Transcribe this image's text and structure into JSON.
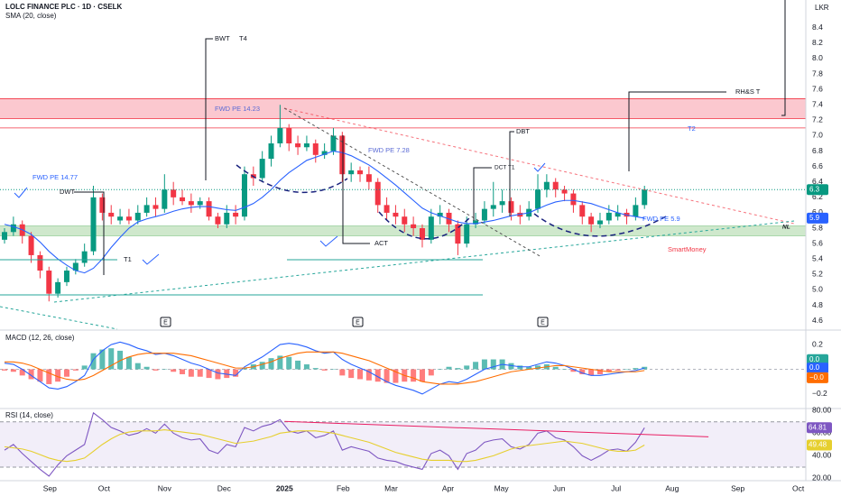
{
  "chart_data": [
    {
      "type": "candlestick",
      "title": "LOLC FINANCE PLC · 1D · CSELK",
      "unit_label": "LKR",
      "xlim": [
        -0.51,
        90.15
      ],
      "ylim": [
        4.49,
        8.76
      ],
      "yticks": [
        4.6,
        4.8,
        {
          "value": 5,
          "label": "5.0"
        },
        5.2,
        5.4,
        5.6,
        5.8,
        {
          "value": 6,
          "label": "6.0"
        },
        6.2,
        6.4,
        6.6,
        6.8,
        {
          "value": 7,
          "label": "7.0"
        },
        7.2,
        7.4,
        7.6,
        7.8,
        {
          "value": 8,
          "label": "8.0"
        },
        8.2,
        8.4
      ],
      "grid": false,
      "up_color": "#089981",
      "down_color": "#f23645",
      "open": [
        5.65,
        5.75,
        5.85,
        5.7,
        5.45,
        5.25,
        4.95,
        5.1,
        5.25,
        5.35,
        5.5,
        6.2,
        6.0,
        5.9,
        5.95,
        5.9,
        6.0,
        6.1,
        6.05,
        6.3,
        6.2,
        6.15,
        6.1,
        6.15,
        5.95,
        5.85,
        6.0,
        5.95,
        6.5,
        6.45,
        6.7,
        6.9,
        7.1,
        6.9,
        6.85,
        6.9,
        6.75,
        6.8,
        7.0,
        6.5,
        6.55,
        6.5,
        6.4,
        6.1,
        6.0,
        5.95,
        5.85,
        5.8,
        5.65,
        5.95,
        6.0,
        5.85,
        5.6,
        5.85,
        5.9,
        6.05,
        6.1,
        6.15,
        6.0,
        5.95,
        6.05,
        6.3,
        6.4,
        6.3,
        6.25,
        6.1,
        5.95,
        5.85,
        5.9,
        5.95,
        6.0,
        5.95,
        6.1
      ],
      "high": [
        5.8,
        5.95,
        5.9,
        5.75,
        5.5,
        5.3,
        5.15,
        5.3,
        5.4,
        5.6,
        6.35,
        6.25,
        6.1,
        6.05,
        6.05,
        6.1,
        6.2,
        6.2,
        6.5,
        6.4,
        6.3,
        6.25,
        6.2,
        6.2,
        6.0,
        6.1,
        6.1,
        6.6,
        6.6,
        6.8,
        7.0,
        7.4,
        7.15,
        7.0,
        7.0,
        6.95,
        6.9,
        7.1,
        7.05,
        6.65,
        6.6,
        6.6,
        6.45,
        6.2,
        6.1,
        6.05,
        5.95,
        5.85,
        6.05,
        6.1,
        6.05,
        5.9,
        5.95,
        6.0,
        6.15,
        6.4,
        6.3,
        6.2,
        6.1,
        6.15,
        6.5,
        6.5,
        6.45,
        6.35,
        6.3,
        6.15,
        6.0,
        6.0,
        6.1,
        6.1,
        6.05,
        6.2,
        6.35
      ],
      "low": [
        5.6,
        5.7,
        5.6,
        5.35,
        5.15,
        4.85,
        4.9,
        5.05,
        5.2,
        5.3,
        5.45,
        5.9,
        5.85,
        5.85,
        5.85,
        5.85,
        5.95,
        5.95,
        6.0,
        6.1,
        6.1,
        6.0,
        6.05,
        5.9,
        5.8,
        5.8,
        5.85,
        5.9,
        6.35,
        6.4,
        6.6,
        6.85,
        6.8,
        6.75,
        6.8,
        6.65,
        6.7,
        6.75,
        6.4,
        6.4,
        6.4,
        6.3,
        6.0,
        5.9,
        5.85,
        5.75,
        5.7,
        5.55,
        5.6,
        5.85,
        5.75,
        5.45,
        5.55,
        5.8,
        5.85,
        5.95,
        6.0,
        5.9,
        5.85,
        5.9,
        6.0,
        6.2,
        6.2,
        6.15,
        6.0,
        5.85,
        5.75,
        5.8,
        5.85,
        5.9,
        5.85,
        5.9,
        6.05
      ],
      "close": [
        5.75,
        5.85,
        5.7,
        5.45,
        5.25,
        4.95,
        5.1,
        5.25,
        5.35,
        5.5,
        6.2,
        6.0,
        5.95,
        5.95,
        5.9,
        6.0,
        6.1,
        6.05,
        6.3,
        6.2,
        6.15,
        6.1,
        6.15,
        5.95,
        5.85,
        6.0,
        5.95,
        6.5,
        6.45,
        6.7,
        6.9,
        7.1,
        6.9,
        6.85,
        6.9,
        6.75,
        6.8,
        7.0,
        6.5,
        6.55,
        6.5,
        6.4,
        6.1,
        6.0,
        5.95,
        5.85,
        5.8,
        5.65,
        5.95,
        6.0,
        5.85,
        5.6,
        5.85,
        5.9,
        6.05,
        6.1,
        6.15,
        6.0,
        5.95,
        6.05,
        6.3,
        6.4,
        6.3,
        6.25,
        6.1,
        5.95,
        5.85,
        5.9,
        6.0,
        6.0,
        5.95,
        6.1,
        6.3
      ],
      "last_value_label": "6.3",
      "last_color": "#089981",
      "series": [
        {
          "name": "SMA (20, close)",
          "color": "#2962ff",
          "values": [
            5.85,
            5.82,
            5.78,
            5.72,
            5.62,
            5.5,
            5.4,
            5.32,
            5.25,
            5.22,
            5.28,
            5.4,
            5.55,
            5.68,
            5.8,
            5.88,
            5.92,
            5.95,
            5.98,
            6.02,
            6.05,
            6.07,
            6.08,
            6.08,
            6.06,
            6.04,
            6.03,
            6.07,
            6.12,
            6.2,
            6.3,
            6.42,
            6.52,
            6.6,
            6.68,
            6.72,
            6.76,
            6.8,
            6.78,
            6.74,
            6.68,
            6.62,
            6.54,
            6.45,
            6.36,
            6.26,
            6.16,
            6.06,
            6.0,
            5.96,
            5.92,
            5.88,
            5.86,
            5.86,
            5.88,
            5.9,
            5.93,
            5.96,
            5.98,
            6.0,
            6.05,
            6.1,
            6.14,
            6.16,
            6.16,
            6.14,
            6.12,
            6.08,
            6.04,
            6.0,
            5.97,
            5.95,
            5.93
          ],
          "last_value_label": "5.9"
        }
      ],
      "zones": [
        {
          "range": [
            7.22,
            7.48
          ],
          "color": "#fbc8cf",
          "border": "#f23645"
        },
        {
          "range": [
            5.7,
            5.83
          ],
          "color": "#cfe8cc",
          "border": "#a5d6a7"
        }
      ],
      "levels": [
        {
          "value": 7.1,
          "color": "#f23645"
        }
      ],
      "annotations": {
        "bwt": "BWT",
        "t4": "T4",
        "dwt": "DWT",
        "t1_left": "T1",
        "act": "ACT",
        "dbt": "DBT",
        "dct_t1": "DCT  T1",
        "rhs_t": "RH&S T",
        "t2": "T2",
        "nl": "NL",
        "smartmoney": "SmartMoney",
        "fwd_pe_1": "FWD PE 14.77",
        "fwd_pe_2": "FWD PE 14.23",
        "fwd_pe_3": "FWD PE 7.28",
        "fwd_pe_4": "FWD PE 5.9"
      },
      "earnings": [
        "E",
        "E",
        "E"
      ]
    },
    {
      "type": "macd",
      "title": "MACD (12, 26, close)",
      "xlim": [
        -0.51,
        90.15
      ],
      "ylim": [
        -0.31,
        0.31
      ],
      "yticks": [
        0.2,
        {
          "value": -0.2,
          "label": "−0.2"
        }
      ],
      "histogram": {
        "up_color": "#26a69a",
        "down_color": "#ff5252",
        "values": [
          -0.01,
          -0.02,
          -0.05,
          -0.08,
          -0.1,
          -0.12,
          -0.1,
          -0.06,
          -0.01,
          0.03,
          0.13,
          0.16,
          0.17,
          0.15,
          0.1,
          0.05,
          0.02,
          -0.01,
          0.0,
          -0.02,
          -0.04,
          -0.06,
          -0.06,
          -0.07,
          -0.08,
          -0.07,
          -0.06,
          0.01,
          0.04,
          0.06,
          0.09,
          0.11,
          0.1,
          0.07,
          0.04,
          0.01,
          -0.01,
          0.0,
          -0.05,
          -0.07,
          -0.08,
          -0.09,
          -0.1,
          -0.11,
          -0.11,
          -0.1,
          -0.1,
          -0.1,
          -0.05,
          0.0,
          0.02,
          0.01,
          0.03,
          0.06,
          0.08,
          0.08,
          0.08,
          0.05,
          0.03,
          0.02,
          0.03,
          0.04,
          0.02,
          0.0,
          -0.02,
          -0.04,
          -0.05,
          -0.04,
          -0.02,
          -0.01,
          0.0,
          0.01,
          0.02
        ],
        "last_value_label": "0.0"
      },
      "series": [
        {
          "color": "#2962ff",
          "last_value_label": "0.0",
          "values": [
            0.05,
            0.04,
            0.0,
            -0.05,
            -0.1,
            -0.15,
            -0.16,
            -0.14,
            -0.1,
            -0.05,
            0.08,
            0.15,
            0.2,
            0.22,
            0.2,
            0.17,
            0.15,
            0.12,
            0.13,
            0.11,
            0.08,
            0.05,
            0.03,
            0.0,
            -0.03,
            -0.04,
            -0.05,
            0.02,
            0.06,
            0.1,
            0.15,
            0.2,
            0.21,
            0.2,
            0.18,
            0.15,
            0.13,
            0.14,
            0.08,
            0.04,
            0.01,
            -0.02,
            -0.06,
            -0.1,
            -0.13,
            -0.15,
            -0.17,
            -0.2,
            -0.16,
            -0.12,
            -0.1,
            -0.11,
            -0.08,
            -0.04,
            0.0,
            0.02,
            0.04,
            0.03,
            0.02,
            0.02,
            0.04,
            0.06,
            0.05,
            0.03,
            0.0,
            -0.03,
            -0.05,
            -0.05,
            -0.04,
            -0.03,
            -0.02,
            -0.01,
            0.01
          ]
        },
        {
          "color": "#ff6d00",
          "last_value_label": "−0.0",
          "values": [
            0.06,
            0.06,
            0.05,
            0.03,
            0.0,
            -0.03,
            -0.06,
            -0.08,
            -0.09,
            -0.08,
            -0.05,
            -0.01,
            0.03,
            0.07,
            0.1,
            0.12,
            0.13,
            0.13,
            0.13,
            0.13,
            0.12,
            0.11,
            0.09,
            0.07,
            0.05,
            0.03,
            0.01,
            0.01,
            0.02,
            0.04,
            0.06,
            0.09,
            0.11,
            0.13,
            0.14,
            0.14,
            0.14,
            0.14,
            0.13,
            0.11,
            0.09,
            0.07,
            0.04,
            0.01,
            -0.02,
            -0.05,
            -0.07,
            -0.1,
            -0.11,
            -0.12,
            -0.12,
            -0.12,
            -0.11,
            -0.1,
            -0.08,
            -0.06,
            -0.04,
            -0.02,
            -0.01,
            0.0,
            0.01,
            0.02,
            0.03,
            0.03,
            0.02,
            0.01,
            0.0,
            -0.01,
            -0.02,
            -0.02,
            -0.02,
            -0.02,
            -0.01
          ]
        }
      ]
    },
    {
      "type": "rsi",
      "title": "RSI (14, close)",
      "xlim": [
        -0.51,
        90.15
      ],
      "ylim": [
        18,
        81
      ],
      "yticks": [
        {
          "value": 80,
          "label": "80.00"
        },
        {
          "value": 60,
          "label": "60.00"
        },
        {
          "value": 40,
          "label": "40.00"
        },
        {
          "value": 20,
          "label": "20.00"
        }
      ],
      "bands": [
        30,
        70
      ],
      "band_color": "#7e57c2",
      "series": [
        {
          "color": "#7e57c2",
          "last_value_label": "64.81",
          "values": [
            45,
            50,
            42,
            35,
            28,
            22,
            32,
            40,
            45,
            50,
            78,
            72,
            65,
            62,
            58,
            60,
            64,
            60,
            68,
            60,
            56,
            54,
            55,
            45,
            42,
            50,
            48,
            65,
            62,
            66,
            68,
            72,
            62,
            60,
            62,
            56,
            58,
            62,
            45,
            48,
            46,
            44,
            38,
            36,
            35,
            32,
            30,
            28,
            42,
            45,
            40,
            28,
            42,
            45,
            52,
            54,
            55,
            48,
            46,
            50,
            60,
            62,
            56,
            54,
            48,
            40,
            36,
            40,
            45,
            46,
            44,
            52,
            64.81
          ]
        },
        {
          "color": "#e6cf2e",
          "last_value_label": "49.48",
          "values": [
            48,
            47,
            46,
            44,
            41,
            38,
            36,
            35,
            36,
            38,
            44,
            50,
            55,
            59,
            61,
            62,
            62,
            62,
            63,
            62,
            61,
            60,
            59,
            57,
            55,
            53,
            51,
            52,
            53,
            55,
            57,
            60,
            61,
            62,
            62,
            62,
            61,
            60,
            58,
            56,
            54,
            52,
            49,
            46,
            43,
            41,
            39,
            37,
            36,
            36,
            36,
            35,
            35,
            36,
            38,
            40,
            43,
            46,
            48,
            49,
            50,
            51,
            52,
            53,
            52,
            51,
            49,
            47,
            45,
            44,
            44,
            45,
            49.48
          ]
        }
      ],
      "trendline": {
        "x": [
          31.5,
          79.2
        ],
        "values": [
          70.4,
          56.8
        ],
        "color": "#e91e63"
      },
      "xticks": [
        {
          "value": 5.1,
          "label": "Sep"
        },
        {
          "value": 11.2,
          "label": "Oct"
        },
        {
          "value": 18.0,
          "label": "Nov"
        },
        {
          "value": 24.7,
          "label": "Dec"
        },
        {
          "value": 31.5,
          "label": "2025"
        },
        {
          "value": 38.1,
          "label": "Feb"
        },
        {
          "value": 43.5,
          "label": "Mar"
        },
        {
          "value": 49.9,
          "label": "Apr"
        },
        {
          "value": 55.9,
          "label": "May"
        },
        {
          "value": 62.4,
          "label": "Jun"
        },
        {
          "value": 68.8,
          "label": "Jul"
        },
        {
          "value": 75.1,
          "label": "Aug"
        },
        {
          "value": 82.5,
          "label": "Sep"
        },
        {
          "value": 89.3,
          "label": "Oct"
        }
      ]
    }
  ]
}
